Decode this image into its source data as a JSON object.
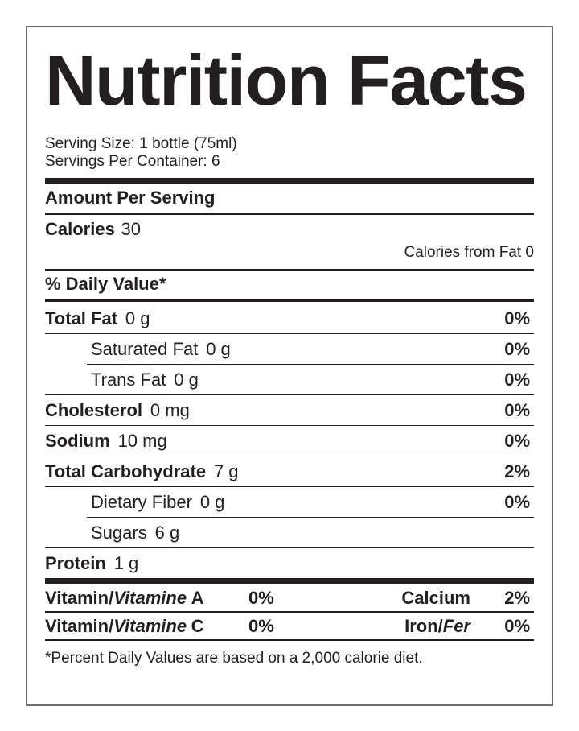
{
  "colors": {
    "text": "#231f20",
    "rule": "#231f20",
    "border": "#6d6e71",
    "bg": "#ffffff"
  },
  "title": "Nutrition Facts",
  "serving": {
    "size": "Serving Size: 1 bottle (75ml)",
    "per_container": "Servings Per Container: 6"
  },
  "headers": {
    "amount_per_serving": "Amount Per Serving",
    "daily_value": "% Daily Value*"
  },
  "calories": {
    "label": "Calories",
    "value": "30",
    "from_fat": "Calories from Fat 0"
  },
  "nutrients": [
    {
      "name": "Total Fat",
      "amount": "0 g",
      "dv": "0%"
    },
    {
      "name": "Saturated Fat",
      "amount": "0 g",
      "dv": "0%"
    },
    {
      "name": "Trans Fat",
      "amount": "0 g",
      "dv": "0%"
    },
    {
      "name": "Cholesterol",
      "amount": "0 mg",
      "dv": "0%"
    },
    {
      "name": "Sodium",
      "amount": "10 mg",
      "dv": "0%"
    },
    {
      "name": "Total Carbohydrate",
      "amount": "7 g",
      "dv": "2%"
    },
    {
      "name": "Dietary Fiber",
      "amount": "0 g",
      "dv": "0%"
    },
    {
      "name": "Sugars",
      "amount": "6 g",
      "dv": ""
    },
    {
      "name": "Protein",
      "amount": "1 g",
      "dv": ""
    }
  ],
  "vitamins": [
    {
      "prefix": "Vitamin/",
      "fr": "Vitamine",
      "letter": "A",
      "pct": "0%",
      "right": "Calcium",
      "right_fr": "",
      "right_pct": "2%"
    },
    {
      "prefix": "Vitamin/",
      "fr": "Vitamine",
      "letter": "C",
      "pct": "0%",
      "right": "Iron/",
      "right_fr": "Fer",
      "right_pct": "0%"
    }
  ],
  "footnote": "*Percent Daily Values are based on a 2,000 calorie diet."
}
